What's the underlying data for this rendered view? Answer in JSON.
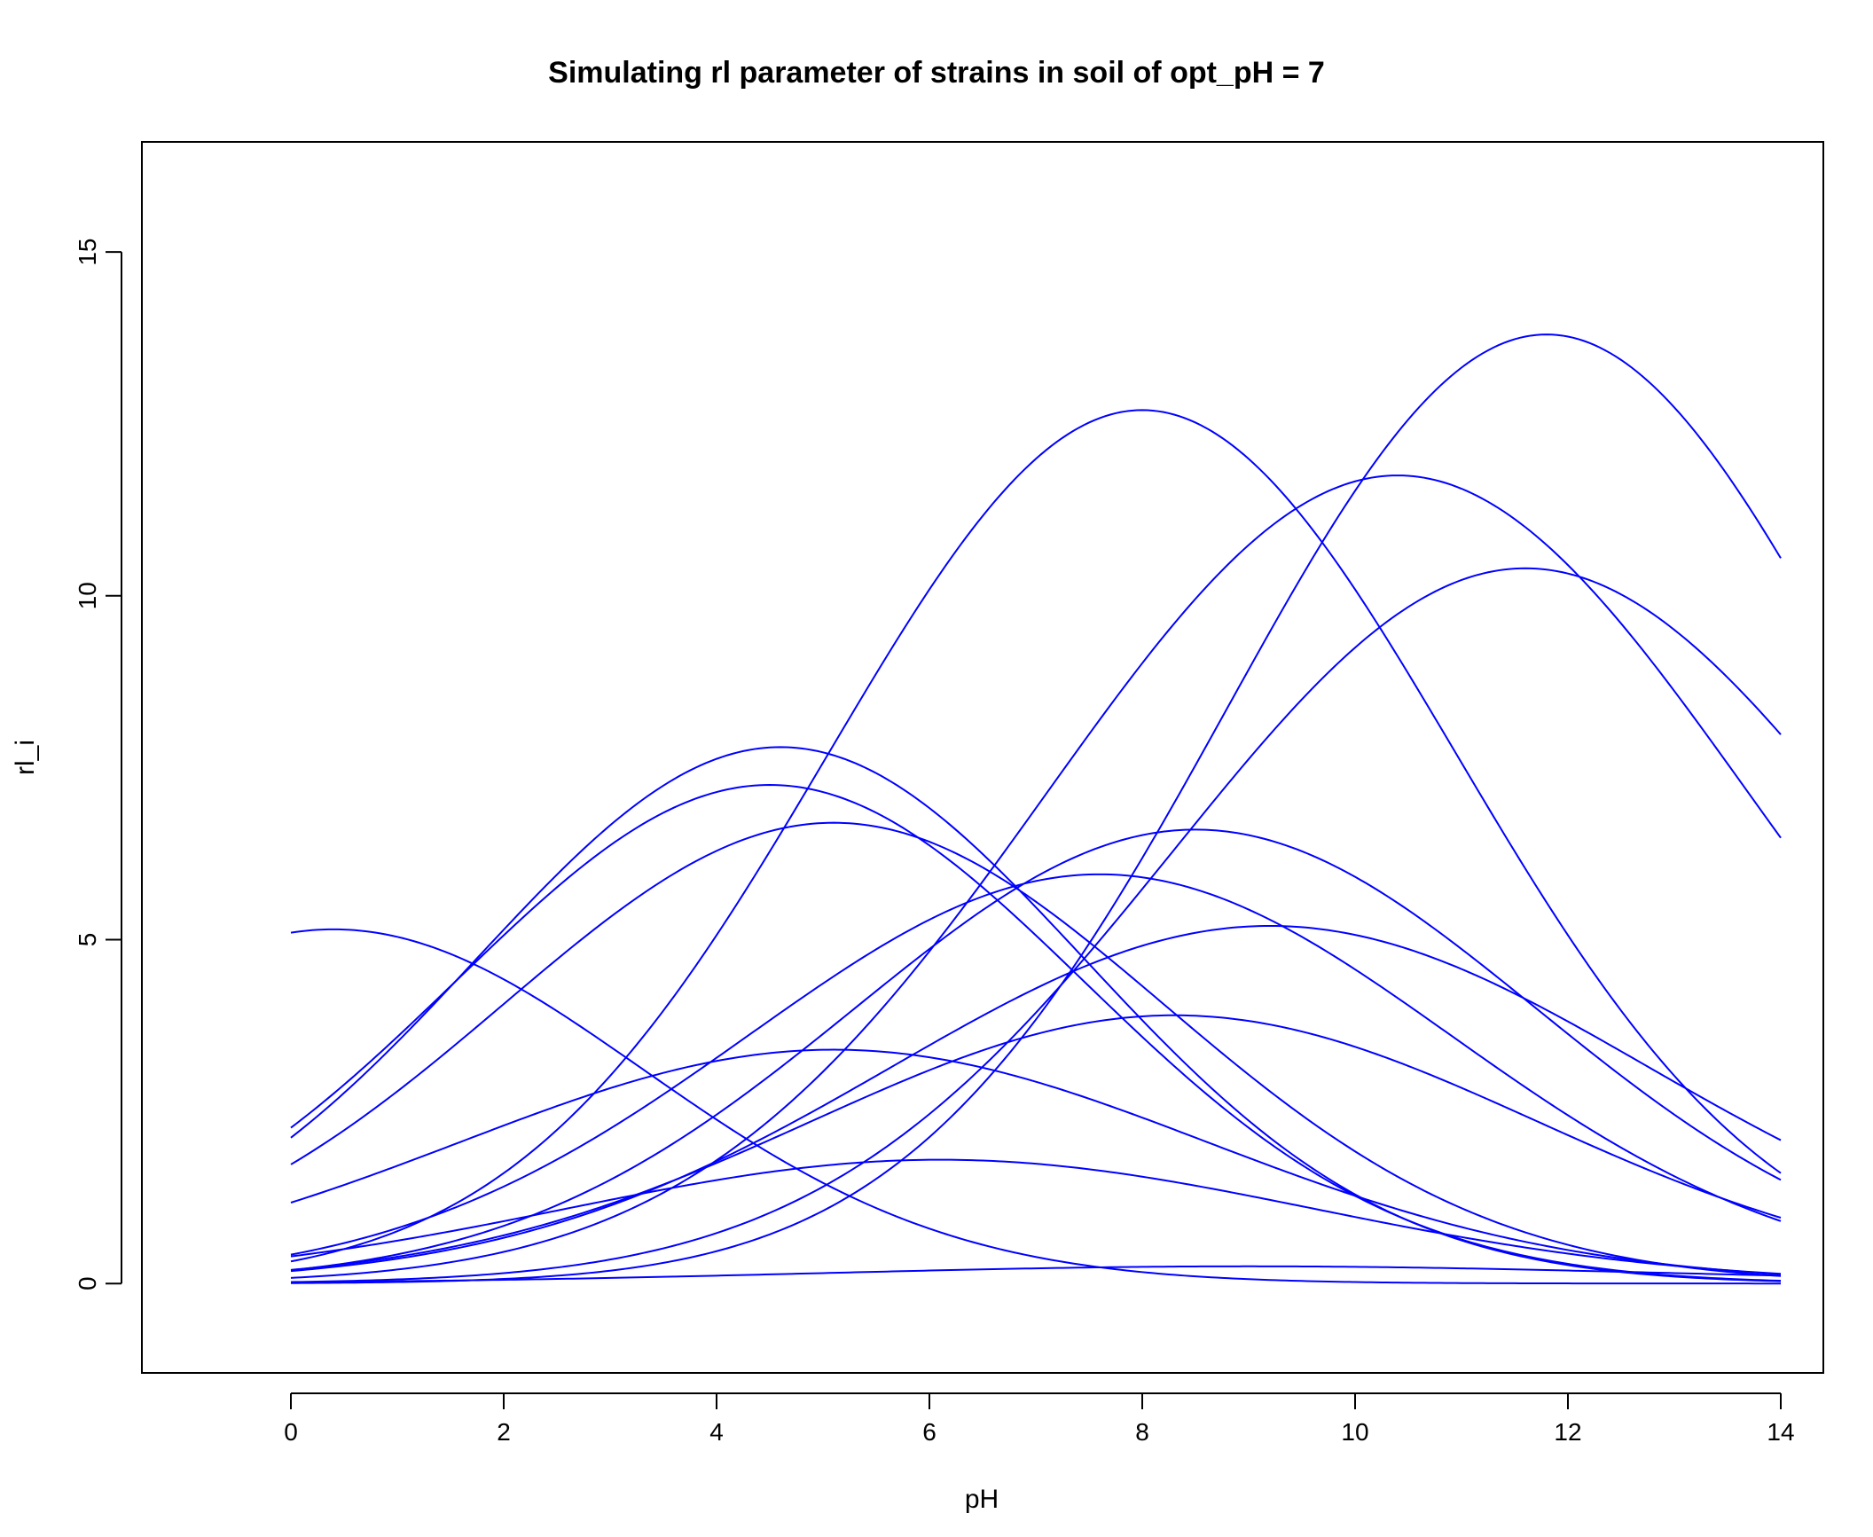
{
  "chart_data": {
    "type": "line",
    "title": "Simulating rl parameter of strains in soil of opt_pH = 7",
    "xlabel": "pH",
    "ylabel": "rl_i",
    "xlim": [
      -1.4,
      14.4
    ],
    "ylim": [
      -1.3,
      16.6
    ],
    "xticks": [
      0,
      2,
      4,
      6,
      8,
      10,
      12,
      14
    ],
    "yticks": [
      0,
      5,
      10,
      15
    ],
    "grid": false,
    "legend": "none",
    "line_color": "#0000ff",
    "curve_form": "gaussian",
    "series": [
      {
        "peak": 13.8,
        "center": 11.8,
        "width": 3.0
      },
      {
        "peak": 12.7,
        "center": 8.0,
        "width": 2.95
      },
      {
        "peak": 11.75,
        "center": 10.4,
        "width": 3.3
      },
      {
        "peak": 10.4,
        "center": 11.6,
        "width": 3.3
      },
      {
        "peak": 7.8,
        "center": 4.6,
        "width": 2.85
      },
      {
        "peak": 7.25,
        "center": 4.5,
        "width": 2.95
      },
      {
        "peak": 6.7,
        "center": 5.1,
        "width": 3.1
      },
      {
        "peak": 6.6,
        "center": 8.5,
        "width": 3.2
      },
      {
        "peak": 5.95,
        "center": 7.6,
        "width": 3.3
      },
      {
        "peak": 5.15,
        "center": 0.4,
        "width": 2.9
      },
      {
        "peak": 5.2,
        "center": 9.2,
        "width": 3.55
      },
      {
        "peak": 3.9,
        "center": 8.3,
        "width": 3.4
      },
      {
        "peak": 3.4,
        "center": 5.1,
        "width": 3.5
      },
      {
        "peak": 1.8,
        "center": 6.1,
        "width": 3.5
      },
      {
        "peak": 0.25,
        "center": 9.0,
        "width": 4.0
      }
    ]
  }
}
